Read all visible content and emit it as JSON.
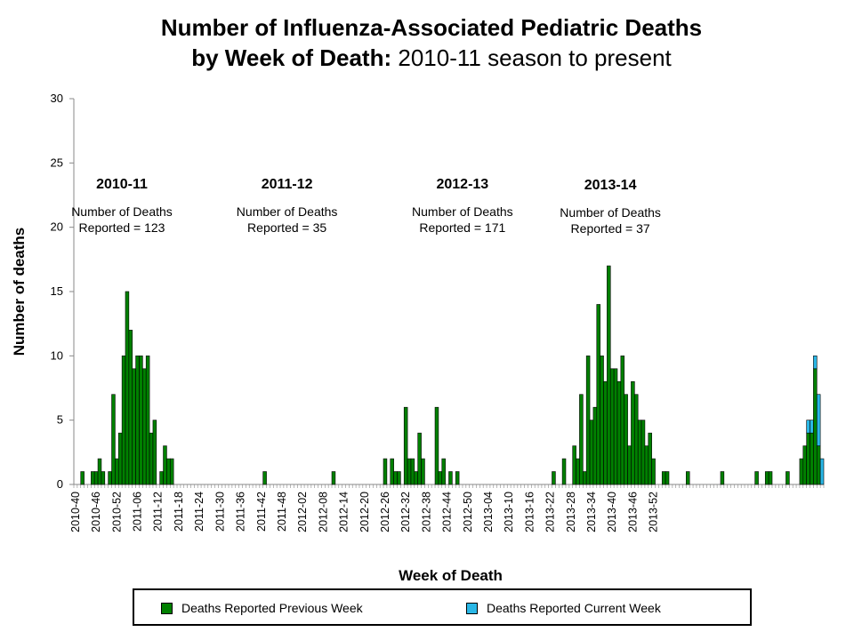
{
  "title": {
    "line1": "Number of Influenza-Associated Pediatric Deaths",
    "line2_bold": "by Week of Death:",
    "line2_normal": "2010-11 season to present"
  },
  "colors": {
    "previous": "#008000",
    "current": "#2ab7e6",
    "axis": "#888888"
  },
  "legend": {
    "previous_label": "Deaths Reported Previous Week",
    "current_label": "Deaths Reported Current Week"
  },
  "chart_data": {
    "type": "bar",
    "stacked": true,
    "xlabel": "Week of Death",
    "ylabel": "Number of deaths",
    "ylim": [
      0,
      30
    ],
    "yticks": [
      0,
      5,
      10,
      15,
      20,
      25,
      30
    ],
    "xtick_labels": [
      "2010-40",
      "2010-46",
      "2010-52",
      "2011-06",
      "2011-12",
      "2011-18",
      "2011-24",
      "2011-30",
      "2011-36",
      "2011-42",
      "2011-48",
      "2012-02",
      "2012-08",
      "2012-14",
      "2012-20",
      "2012-26",
      "2012-32",
      "2012-38",
      "2012-44",
      "2012-50",
      "2013-04",
      "2013-10",
      "2013-16",
      "2013-22",
      "2013-28",
      "2013-34",
      "2013-40",
      "2013-46",
      "2013-52"
    ],
    "series": [
      {
        "name": "Deaths Reported Previous Week",
        "values": [
          0,
          0,
          1,
          0,
          0,
          1,
          1,
          2,
          1,
          0,
          1,
          7,
          2,
          4,
          10,
          15,
          12,
          9,
          10,
          10,
          9,
          10,
          4,
          5,
          0,
          1,
          3,
          2,
          2,
          0,
          0,
          0,
          0,
          0,
          0,
          0,
          0,
          0,
          0,
          0,
          0,
          0,
          0,
          0,
          0,
          0,
          0,
          0,
          0,
          0,
          0,
          0,
          0,
          0,
          0,
          1,
          0,
          0,
          0,
          0,
          0,
          0,
          0,
          0,
          0,
          0,
          0,
          0,
          0,
          0,
          0,
          0,
          0,
          0,
          0,
          1,
          0,
          0,
          0,
          0,
          0,
          0,
          0,
          0,
          0,
          0,
          0,
          0,
          0,
          0,
          2,
          0,
          2,
          1,
          1,
          0,
          6,
          2,
          2,
          1,
          4,
          2,
          0,
          0,
          0,
          6,
          1,
          2,
          0,
          1,
          0,
          1,
          0,
          0,
          0,
          0,
          0,
          0,
          0,
          0,
          0,
          0,
          0,
          0,
          0,
          0,
          0,
          0,
          0,
          0,
          0,
          0,
          0,
          0,
          0,
          0,
          0,
          0,
          0,
          1,
          0,
          0,
          2,
          0,
          0,
          3,
          2,
          7,
          1,
          10,
          5,
          6,
          14,
          10,
          8,
          17,
          9,
          9,
          8,
          10,
          7,
          3,
          8,
          7,
          5,
          5,
          3,
          4,
          2,
          0,
          0,
          1,
          1,
          0,
          0,
          0,
          0,
          0,
          1,
          0,
          0,
          0,
          0,
          0,
          0,
          0,
          0,
          0,
          1,
          0,
          0,
          0,
          0,
          0,
          0,
          0,
          0,
          0,
          1,
          0,
          0,
          1,
          1,
          0,
          0,
          0,
          0,
          1,
          0,
          0,
          0,
          2,
          3,
          4,
          4,
          9,
          3,
          0
        ]
      },
      {
        "name": "Deaths Reported Current Week",
        "values": [
          0,
          0,
          0,
          0,
          0,
          0,
          0,
          0,
          0,
          0,
          0,
          0,
          0,
          0,
          0,
          0,
          0,
          0,
          0,
          0,
          0,
          0,
          0,
          0,
          0,
          0,
          0,
          0,
          0,
          0,
          0,
          0,
          0,
          0,
          0,
          0,
          0,
          0,
          0,
          0,
          0,
          0,
          0,
          0,
          0,
          0,
          0,
          0,
          0,
          0,
          0,
          0,
          0,
          0,
          0,
          0,
          0,
          0,
          0,
          0,
          0,
          0,
          0,
          0,
          0,
          0,
          0,
          0,
          0,
          0,
          0,
          0,
          0,
          0,
          0,
          0,
          0,
          0,
          0,
          0,
          0,
          0,
          0,
          0,
          0,
          0,
          0,
          0,
          0,
          0,
          0,
          0,
          0,
          0,
          0,
          0,
          0,
          0,
          0,
          0,
          0,
          0,
          0,
          0,
          0,
          0,
          0,
          0,
          0,
          0,
          0,
          0,
          0,
          0,
          0,
          0,
          0,
          0,
          0,
          0,
          0,
          0,
          0,
          0,
          0,
          0,
          0,
          0,
          0,
          0,
          0,
          0,
          0,
          0,
          0,
          0,
          0,
          0,
          0,
          0,
          0,
          0,
          0,
          0,
          0,
          0,
          0,
          0,
          0,
          0,
          0,
          0,
          0,
          0,
          0,
          0,
          0,
          0,
          0,
          0,
          0,
          0,
          0,
          0,
          0,
          0,
          0,
          0,
          0,
          0,
          0,
          0,
          0,
          0,
          0,
          0,
          0,
          0,
          0,
          0,
          0,
          0,
          0,
          0,
          0,
          0,
          0,
          0,
          0,
          0,
          0,
          0,
          0,
          0,
          0,
          0,
          0,
          0,
          0,
          0,
          0,
          0,
          0,
          0,
          0,
          0,
          0,
          0,
          0,
          0,
          0,
          0,
          0,
          1,
          1,
          1,
          4,
          2
        ]
      }
    ],
    "annotations": [
      {
        "season": "2010-11",
        "line1": "Number of Deaths",
        "line2": "Reported = 123",
        "week": 7
      },
      {
        "season": "2011-12",
        "line1": "Number of Deaths",
        "line2": "Reported = 35",
        "week": 55
      },
      {
        "season": "2012-13",
        "line1": "Number of Deaths",
        "line2": "Reported = 171",
        "week": 106
      },
      {
        "season": "2013-14",
        "line1": "Number of Deaths",
        "line2": "Reported = 37",
        "week": 149
      }
    ]
  }
}
